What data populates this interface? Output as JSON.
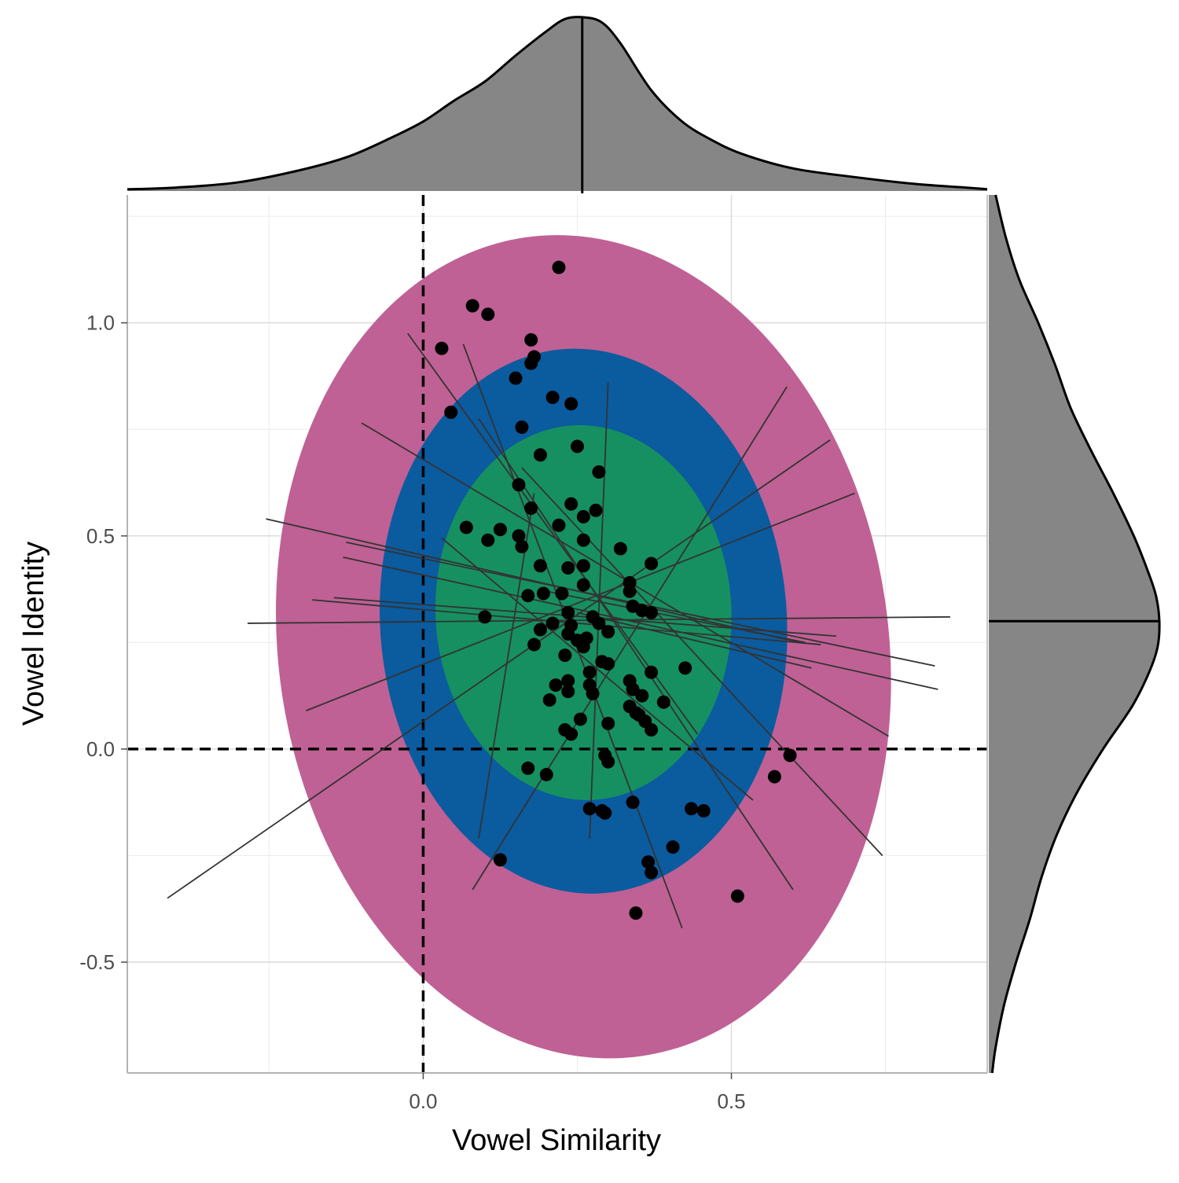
{
  "chart_data": {
    "type": "scatter",
    "title": "",
    "xlabel": "Vowel Similarity",
    "ylabel": "Vowel Identity",
    "xlim": [
      -0.48,
      0.915
    ],
    "ylim": [
      -0.76,
      1.3
    ],
    "x_ticks": [
      0.0,
      0.5
    ],
    "x_tick_labels": [
      "0.0",
      "0.5"
    ],
    "x_minor_gridlines": [
      -0.25,
      0.25,
      0.75
    ],
    "y_ticks": [
      -0.5,
      0.0,
      0.5,
      1.0
    ],
    "y_tick_labels": [
      "-0.5",
      "0.0",
      "0.5",
      "1.0"
    ],
    "y_minor_gridlines": [
      -0.25,
      0.25,
      0.75,
      1.25
    ],
    "grid": true,
    "legend": "none",
    "reference_lines": [
      {
        "orientation": "vertical",
        "value": 0.0,
        "style": "dashed"
      },
      {
        "orientation": "horizontal",
        "value": 0.0,
        "style": "dashed"
      }
    ],
    "ellipses": [
      {
        "level": "outer",
        "center": [
          0.26,
          0.24
        ],
        "semi_x": 0.495,
        "semi_y": 0.97,
        "rotation_deg": -8,
        "color": "#BF6195"
      },
      {
        "level": "middle",
        "center": [
          0.26,
          0.3
        ],
        "semi_x": 0.33,
        "semi_y": 0.64,
        "rotation_deg": -4,
        "color": "#0B5B9F"
      },
      {
        "level": "inner",
        "center": [
          0.26,
          0.32
        ],
        "semi_x": 0.24,
        "semi_y": 0.44,
        "rotation_deg": -3,
        "color": "#169060"
      }
    ],
    "points": [
      {
        "x": 0.22,
        "y": 1.13
      },
      {
        "x": 0.08,
        "y": 1.04
      },
      {
        "x": 0.105,
        "y": 1.02
      },
      {
        "x": 0.03,
        "y": 0.94
      },
      {
        "x": 0.175,
        "y": 0.96
      },
      {
        "x": 0.18,
        "y": 0.92
      },
      {
        "x": 0.175,
        "y": 0.905
      },
      {
        "x": 0.15,
        "y": 0.87
      },
      {
        "x": 0.21,
        "y": 0.825
      },
      {
        "x": 0.24,
        "y": 0.81
      },
      {
        "x": 0.045,
        "y": 0.79
      },
      {
        "x": 0.16,
        "y": 0.755
      },
      {
        "x": 0.25,
        "y": 0.71
      },
      {
        "x": 0.19,
        "y": 0.69
      },
      {
        "x": 0.285,
        "y": 0.65
      },
      {
        "x": 0.155,
        "y": 0.62
      },
      {
        "x": 0.24,
        "y": 0.575
      },
      {
        "x": 0.175,
        "y": 0.565
      },
      {
        "x": 0.28,
        "y": 0.56
      },
      {
        "x": 0.26,
        "y": 0.545
      },
      {
        "x": 0.07,
        "y": 0.52
      },
      {
        "x": 0.125,
        "y": 0.515
      },
      {
        "x": 0.22,
        "y": 0.525
      },
      {
        "x": 0.155,
        "y": 0.5
      },
      {
        "x": 0.105,
        "y": 0.49
      },
      {
        "x": 0.26,
        "y": 0.49
      },
      {
        "x": 0.16,
        "y": 0.475
      },
      {
        "x": 0.32,
        "y": 0.47
      },
      {
        "x": 0.19,
        "y": 0.43
      },
      {
        "x": 0.235,
        "y": 0.425
      },
      {
        "x": 0.26,
        "y": 0.43
      },
      {
        "x": 0.37,
        "y": 0.435
      },
      {
        "x": 0.335,
        "y": 0.39
      },
      {
        "x": 0.26,
        "y": 0.385
      },
      {
        "x": 0.335,
        "y": 0.37
      },
      {
        "x": 0.17,
        "y": 0.36
      },
      {
        "x": 0.195,
        "y": 0.365
      },
      {
        "x": 0.225,
        "y": 0.365
      },
      {
        "x": 0.34,
        "y": 0.335
      },
      {
        "x": 0.355,
        "y": 0.325
      },
      {
        "x": 0.37,
        "y": 0.32
      },
      {
        "x": 0.1,
        "y": 0.31
      },
      {
        "x": 0.235,
        "y": 0.32
      },
      {
        "x": 0.275,
        "y": 0.31
      },
      {
        "x": 0.21,
        "y": 0.295
      },
      {
        "x": 0.24,
        "y": 0.29
      },
      {
        "x": 0.285,
        "y": 0.295
      },
      {
        "x": 0.19,
        "y": 0.28
      },
      {
        "x": 0.235,
        "y": 0.27
      },
      {
        "x": 0.3,
        "y": 0.275
      },
      {
        "x": 0.25,
        "y": 0.255
      },
      {
        "x": 0.265,
        "y": 0.26
      },
      {
        "x": 0.18,
        "y": 0.245
      },
      {
        "x": 0.26,
        "y": 0.24
      },
      {
        "x": 0.23,
        "y": 0.22
      },
      {
        "x": 0.29,
        "y": 0.205
      },
      {
        "x": 0.3,
        "y": 0.2
      },
      {
        "x": 0.425,
        "y": 0.19
      },
      {
        "x": 0.37,
        "y": 0.18
      },
      {
        "x": 0.27,
        "y": 0.18
      },
      {
        "x": 0.335,
        "y": 0.16
      },
      {
        "x": 0.215,
        "y": 0.15
      },
      {
        "x": 0.235,
        "y": 0.16
      },
      {
        "x": 0.27,
        "y": 0.15
      },
      {
        "x": 0.34,
        "y": 0.14
      },
      {
        "x": 0.235,
        "y": 0.135
      },
      {
        "x": 0.275,
        "y": 0.13
      },
      {
        "x": 0.355,
        "y": 0.125
      },
      {
        "x": 0.205,
        "y": 0.115
      },
      {
        "x": 0.39,
        "y": 0.11
      },
      {
        "x": 0.335,
        "y": 0.1
      },
      {
        "x": 0.345,
        "y": 0.085
      },
      {
        "x": 0.35,
        "y": 0.08
      },
      {
        "x": 0.255,
        "y": 0.07
      },
      {
        "x": 0.36,
        "y": 0.065
      },
      {
        "x": 0.3,
        "y": 0.06
      },
      {
        "x": 0.23,
        "y": 0.045
      },
      {
        "x": 0.37,
        "y": 0.045
      },
      {
        "x": 0.24,
        "y": 0.035
      },
      {
        "x": 0.295,
        "y": -0.015
      },
      {
        "x": 0.3,
        "y": -0.03
      },
      {
        "x": 0.595,
        "y": -0.015
      },
      {
        "x": 0.17,
        "y": -0.045
      },
      {
        "x": 0.2,
        "y": -0.06
      },
      {
        "x": 0.57,
        "y": -0.065
      },
      {
        "x": 0.34,
        "y": -0.125
      },
      {
        "x": 0.27,
        "y": -0.14
      },
      {
        "x": 0.29,
        "y": -0.145
      },
      {
        "x": 0.295,
        "y": -0.15
      },
      {
        "x": 0.435,
        "y": -0.14
      },
      {
        "x": 0.455,
        "y": -0.145
      },
      {
        "x": 0.405,
        "y": -0.23
      },
      {
        "x": 0.125,
        "y": -0.26
      },
      {
        "x": 0.365,
        "y": -0.265
      },
      {
        "x": 0.37,
        "y": -0.29
      },
      {
        "x": 0.51,
        "y": -0.345
      },
      {
        "x": 0.345,
        "y": -0.385
      }
    ],
    "fit_lines": [
      {
        "x1": -0.025,
        "y1": 0.975,
        "x2": 0.445,
        "y2": 0.035
      },
      {
        "x1": 0.065,
        "y1": 0.95,
        "x2": 0.42,
        "y2": -0.42
      },
      {
        "x1": 0.09,
        "y1": 0.775,
        "x2": 0.6,
        "y2": -0.33
      },
      {
        "x1": -0.1,
        "y1": 0.765,
        "x2": 0.755,
        "y2": 0.03
      },
      {
        "x1": 0.16,
        "y1": 0.66,
        "x2": 0.745,
        "y2": -0.25
      },
      {
        "x1": 0.03,
        "y1": 0.495,
        "x2": 0.535,
        "y2": -0.12
      },
      {
        "x1": 0.3,
        "y1": 0.86,
        "x2": 0.27,
        "y2": -0.21
      },
      {
        "x1": 0.59,
        "y1": 0.85,
        "x2": 0.08,
        "y2": -0.33
      },
      {
        "x1": 0.66,
        "y1": 0.725,
        "x2": -0.415,
        "y2": -0.35
      },
      {
        "x1": 0.7,
        "y1": 0.6,
        "x2": -0.19,
        "y2": 0.09
      },
      {
        "x1": 0.18,
        "y1": 0.6,
        "x2": 0.09,
        "y2": -0.21
      },
      {
        "x1": -0.255,
        "y1": 0.54,
        "x2": 0.61,
        "y2": 0.25
      },
      {
        "x1": -0.125,
        "y1": 0.485,
        "x2": 0.83,
        "y2": 0.195
      },
      {
        "x1": -0.13,
        "y1": 0.45,
        "x2": 0.835,
        "y2": 0.14
      },
      {
        "x1": -0.18,
        "y1": 0.35,
        "x2": 0.645,
        "y2": 0.245
      },
      {
        "x1": -0.145,
        "y1": 0.355,
        "x2": 0.67,
        "y2": 0.265
      },
      {
        "x1": -0.285,
        "y1": 0.295,
        "x2": 0.855,
        "y2": 0.31
      },
      {
        "x1": 0.2,
        "y1": 0.37,
        "x2": 0.62,
        "y2": 0.25
      },
      {
        "x1": 0.25,
        "y1": 0.32,
        "x2": 0.63,
        "y2": 0.19
      }
    ],
    "marginal_x_density": {
      "x": [
        -0.48,
        -0.4,
        -0.3,
        -0.2,
        -0.12,
        -0.05,
        0.0,
        0.05,
        0.1,
        0.15,
        0.2,
        0.23,
        0.26,
        0.29,
        0.32,
        0.37,
        0.42,
        0.47,
        0.52,
        0.6,
        0.7,
        0.8,
        0.88,
        0.915
      ],
      "density": [
        0.01,
        0.02,
        0.05,
        0.12,
        0.2,
        0.31,
        0.4,
        0.52,
        0.63,
        0.78,
        0.92,
        0.99,
        1.0,
        0.97,
        0.85,
        0.58,
        0.4,
        0.29,
        0.21,
        0.13,
        0.08,
        0.04,
        0.02,
        0.01
      ],
      "center_line_x": 0.258
    },
    "marginal_y_density": {
      "y": [
        1.3,
        1.2,
        1.1,
        1.0,
        0.9,
        0.8,
        0.7,
        0.6,
        0.5,
        0.42,
        0.36,
        0.3,
        0.24,
        0.18,
        0.1,
        0.0,
        -0.1,
        -0.2,
        -0.3,
        -0.4,
        -0.5,
        -0.6,
        -0.7,
        -0.76
      ],
      "density": [
        0.04,
        0.1,
        0.18,
        0.29,
        0.39,
        0.48,
        0.6,
        0.73,
        0.85,
        0.93,
        0.98,
        1.0,
        0.99,
        0.94,
        0.84,
        0.67,
        0.52,
        0.4,
        0.31,
        0.24,
        0.16,
        0.09,
        0.04,
        0.02
      ],
      "center_line_y": 0.3
    }
  }
}
